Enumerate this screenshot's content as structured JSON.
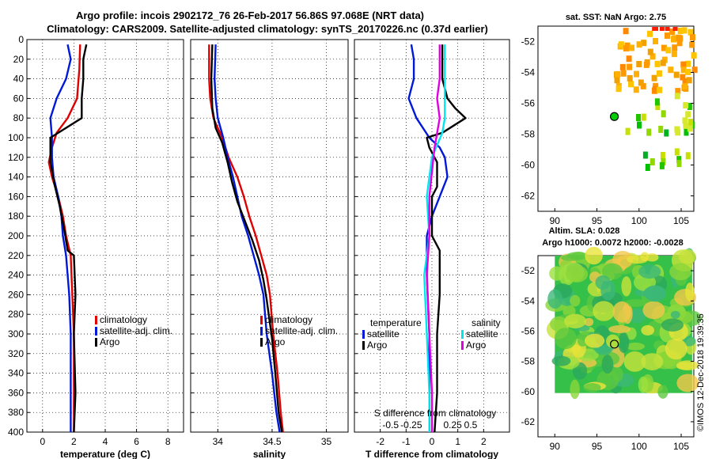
{
  "figure_title": {
    "line1": "Argo profile: incois 2902172_76 26-Feb-2017 56.86S 97.068E (NRT data)",
    "line2": "Climatology: CARS2009. Satellite-adjusted climatology: synTS_20170226.nc (0.37d earlier)"
  },
  "credit": "©IMOS 12-Dec-2018 19:39:35",
  "colors": {
    "climatology": "#e00000",
    "satellite": "#0018d8",
    "argo": "#000000",
    "sal_satellite": "#00e6f0",
    "sal_argo": "#e000e0"
  },
  "chart_data": [
    {
      "id": "temperature",
      "type": "line",
      "xlabel": "temperature (deg C)",
      "xlim": [
        -1,
        9
      ],
      "ylim": [
        0,
        400
      ],
      "xticks": [
        0,
        2,
        4,
        6,
        8
      ],
      "xticklabels": [
        "0",
        "2",
        "4",
        "6",
        "8"
      ],
      "yticks": [
        0,
        20,
        40,
        60,
        80,
        100,
        120,
        140,
        160,
        180,
        200,
        220,
        240,
        260,
        280,
        300,
        320,
        340,
        360,
        380,
        400
      ],
      "yticklabels": [
        "0",
        "20",
        "40",
        "60",
        "80",
        "100",
        "120",
        "140",
        "160",
        "180",
        "200",
        "220",
        "240",
        "260",
        "280",
        "300",
        "320",
        "340",
        "360",
        "380",
        "400"
      ],
      "grid": true,
      "legend": {
        "position": "right-lower",
        "entries": [
          "climatology",
          "satellite-adj. clim.",
          "Argo"
        ]
      },
      "series": [
        {
          "name": "climatology",
          "color": "#e00000",
          "points": [
            [
              2.4,
              5
            ],
            [
              2.35,
              30
            ],
            [
              2.2,
              60
            ],
            [
              1.6,
              80
            ],
            [
              0.9,
              95
            ],
            [
              0.6,
              110
            ],
            [
              0.4,
              125
            ],
            [
              0.6,
              140
            ],
            [
              1.0,
              160
            ],
            [
              1.3,
              180
            ],
            [
              1.5,
              200
            ],
            [
              1.8,
              220
            ],
            [
              1.9,
              260
            ],
            [
              2.0,
              300
            ],
            [
              2.0,
              360
            ],
            [
              2.0,
              400
            ]
          ]
        },
        {
          "name": "satellite-adj. clim.",
          "color": "#0018d8",
          "points": [
            [
              1.6,
              5
            ],
            [
              1.8,
              20
            ],
            [
              1.5,
              40
            ],
            [
              0.9,
              60
            ],
            [
              0.5,
              80
            ],
            [
              0.6,
              100
            ],
            [
              0.6,
              120
            ],
            [
              0.7,
              140
            ],
            [
              1.0,
              160
            ],
            [
              1.2,
              180
            ],
            [
              1.3,
              200
            ],
            [
              1.5,
              220
            ],
            [
              1.7,
              260
            ],
            [
              1.8,
              300
            ],
            [
              1.8,
              360
            ],
            [
              1.8,
              400
            ]
          ]
        },
        {
          "name": "Argo",
          "color": "#000000",
          "points": [
            [
              2.8,
              5
            ],
            [
              2.6,
              20
            ],
            [
              2.6,
              40
            ],
            [
              2.5,
              60
            ],
            [
              2.5,
              80
            ],
            [
              1.5,
              90
            ],
            [
              0.5,
              100
            ],
            [
              0.5,
              110
            ],
            [
              0.5,
              125
            ],
            [
              0.8,
              150
            ],
            [
              1.1,
              170
            ],
            [
              1.4,
              195
            ],
            [
              1.6,
              215
            ],
            [
              2.0,
              220
            ],
            [
              2.1,
              260
            ],
            [
              2.0,
              300
            ],
            [
              2.1,
              360
            ],
            [
              2.0,
              400
            ]
          ]
        }
      ]
    },
    {
      "id": "salinity",
      "type": "line",
      "xlabel": "salinity",
      "xlim": [
        33.75,
        35.2
      ],
      "ylim": [
        0,
        400
      ],
      "xticks": [
        34,
        34.5,
        35
      ],
      "xticklabels": [
        "34",
        "34.5",
        "35"
      ],
      "grid": true,
      "legend": {
        "position": "right-lower",
        "entries": [
          "climatology",
          "satellite-adj. clim.",
          "Argo"
        ]
      },
      "series": [
        {
          "name": "climatology",
          "color": "#e00000",
          "points": [
            [
              33.92,
              5
            ],
            [
              33.92,
              40
            ],
            [
              33.93,
              60
            ],
            [
              33.96,
              80
            ],
            [
              34.04,
              100
            ],
            [
              34.1,
              120
            ],
            [
              34.18,
              140
            ],
            [
              34.24,
              160
            ],
            [
              34.29,
              180
            ],
            [
              34.35,
              200
            ],
            [
              34.4,
              220
            ],
            [
              34.45,
              240
            ],
            [
              34.48,
              260
            ],
            [
              34.51,
              300
            ],
            [
              34.55,
              340
            ],
            [
              34.58,
              380
            ],
            [
              34.6,
              400
            ]
          ]
        },
        {
          "name": "satellite-adj. clim.",
          "color": "#0018d8",
          "points": [
            [
              33.98,
              5
            ],
            [
              33.97,
              40
            ],
            [
              33.98,
              60
            ],
            [
              34.0,
              80
            ],
            [
              34.05,
              100
            ],
            [
              34.09,
              120
            ],
            [
              34.14,
              140
            ],
            [
              34.18,
              160
            ],
            [
              34.22,
              180
            ],
            [
              34.28,
              200
            ],
            [
              34.33,
              220
            ],
            [
              34.38,
              240
            ],
            [
              34.42,
              260
            ],
            [
              34.45,
              300
            ],
            [
              34.5,
              340
            ],
            [
              34.54,
              380
            ],
            [
              34.57,
              400
            ]
          ]
        },
        {
          "name": "Argo",
          "color": "#000000",
          "points": [
            [
              33.95,
              5
            ],
            [
              33.94,
              40
            ],
            [
              33.95,
              70
            ],
            [
              33.98,
              90
            ],
            [
              34.04,
              105
            ],
            [
              34.09,
              125
            ],
            [
              34.13,
              145
            ],
            [
              34.18,
              165
            ],
            [
              34.25,
              185
            ],
            [
              34.32,
              205
            ],
            [
              34.38,
              225
            ],
            [
              34.42,
              245
            ],
            [
              34.45,
              265
            ],
            [
              34.5,
              305
            ],
            [
              34.53,
              340
            ],
            [
              34.56,
              380
            ],
            [
              34.59,
              400
            ]
          ]
        }
      ]
    },
    {
      "id": "difference",
      "type": "line",
      "xlabel": "T difference from climatology",
      "top_xlabel": "S difference from climatology",
      "xlim": [
        -3,
        3
      ],
      "ylim": [
        0,
        400
      ],
      "xticks": [
        -2,
        -1,
        0,
        1,
        2
      ],
      "xticklabels": [
        "-2",
        "-1",
        "0",
        "1",
        "2"
      ],
      "top_ticks": [
        -1.6,
        -0.8,
        0.8,
        1.5
      ],
      "top_ticklabels": [
        "-0.5",
        "-0.25",
        "0.25",
        "0.5"
      ],
      "grid": true,
      "legend": {
        "position": "lower",
        "temperature_heading": "temperature",
        "salinity_heading": "salinity",
        "entries": [
          "satellite",
          "Argo",
          "satellite",
          "Argo"
        ]
      },
      "series": [
        {
          "name": "T satellite",
          "color": "#0018d8",
          "points": [
            [
              -0.8,
              5
            ],
            [
              -0.7,
              20
            ],
            [
              -0.7,
              40
            ],
            [
              -0.9,
              60
            ],
            [
              -0.6,
              80
            ],
            [
              -0.1,
              100
            ],
            [
              0.3,
              110
            ],
            [
              0.5,
              120
            ],
            [
              0.6,
              140
            ],
            [
              0.3,
              160
            ],
            [
              0.0,
              180
            ],
            [
              -0.2,
              200
            ],
            [
              -0.2,
              240
            ],
            [
              -0.1,
              300
            ],
            [
              -0.1,
              360
            ],
            [
              -0.1,
              400
            ]
          ]
        },
        {
          "name": "T Argo",
          "color": "#000000",
          "points": [
            [
              0.4,
              5
            ],
            [
              0.4,
              20
            ],
            [
              0.4,
              40
            ],
            [
              0.6,
              60
            ],
            [
              0.9,
              70
            ],
            [
              1.3,
              80
            ],
            [
              0.4,
              95
            ],
            [
              -0.2,
              100
            ],
            [
              -0.1,
              110
            ],
            [
              0.2,
              125
            ],
            [
              0.2,
              150
            ],
            [
              0.0,
              160
            ],
            [
              0.0,
              200
            ],
            [
              0.3,
              215
            ],
            [
              0.3,
              260
            ],
            [
              0.2,
              300
            ],
            [
              0.2,
              360
            ],
            [
              0.1,
              400
            ]
          ]
        },
        {
          "name": "S satellite",
          "color": "#00e6f0",
          "points": [
            [
              0.5,
              5
            ],
            [
              0.5,
              30
            ],
            [
              0.5,
              60
            ],
            [
              0.5,
              80
            ],
            [
              0.4,
              95
            ],
            [
              0.0,
              120
            ],
            [
              -0.2,
              160
            ],
            [
              -0.1,
              200
            ],
            [
              -0.3,
              240
            ],
            [
              -0.2,
              300
            ],
            [
              -0.1,
              360
            ],
            [
              -0.1,
              400
            ]
          ]
        },
        {
          "name": "S Argo",
          "color": "#e000e0",
          "points": [
            [
              0.3,
              5
            ],
            [
              0.3,
              40
            ],
            [
              0.2,
              60
            ],
            [
              0.3,
              80
            ],
            [
              0.1,
              110
            ],
            [
              -0.1,
              160
            ],
            [
              -0.1,
              200
            ],
            [
              -0.2,
              240
            ],
            [
              -0.1,
              300
            ],
            [
              0.0,
              360
            ],
            [
              0.0,
              400
            ]
          ]
        }
      ]
    },
    {
      "id": "sst_map",
      "type": "heatmap",
      "title": "sat. SST: NaN Argo: 2.75",
      "xlim": [
        88,
        106.5
      ],
      "ylim": [
        -63,
        -51
      ],
      "xticks": [
        90,
        95,
        100,
        105
      ],
      "xticklabels": [
        "90",
        "95",
        "100",
        "105"
      ],
      "yticks": [
        -52,
        -54,
        -56,
        -58,
        -60,
        -62
      ],
      "yticklabels": [
        "-52",
        "-54",
        "-56",
        "-58",
        "-60",
        "-62"
      ],
      "profile_location": [
        97.07,
        -56.86
      ]
    },
    {
      "id": "sla_map",
      "type": "heatmap",
      "title": "Altim. SLA: 0.028",
      "subtitle": "Argo h1000: 0.0072 h2000: -0.0028",
      "xlim": [
        88,
        106.5
      ],
      "ylim": [
        -63,
        -51
      ],
      "xticks": [
        90,
        95,
        100,
        105
      ],
      "xticklabels": [
        "90",
        "95",
        "100",
        "105"
      ],
      "yticks": [
        -52,
        -54,
        -56,
        -58,
        -60,
        -62
      ],
      "yticklabels": [
        "-52",
        "-54",
        "-56",
        "-58",
        "-60",
        "-62"
      ],
      "profile_location": [
        97.07,
        -56.86
      ]
    }
  ]
}
